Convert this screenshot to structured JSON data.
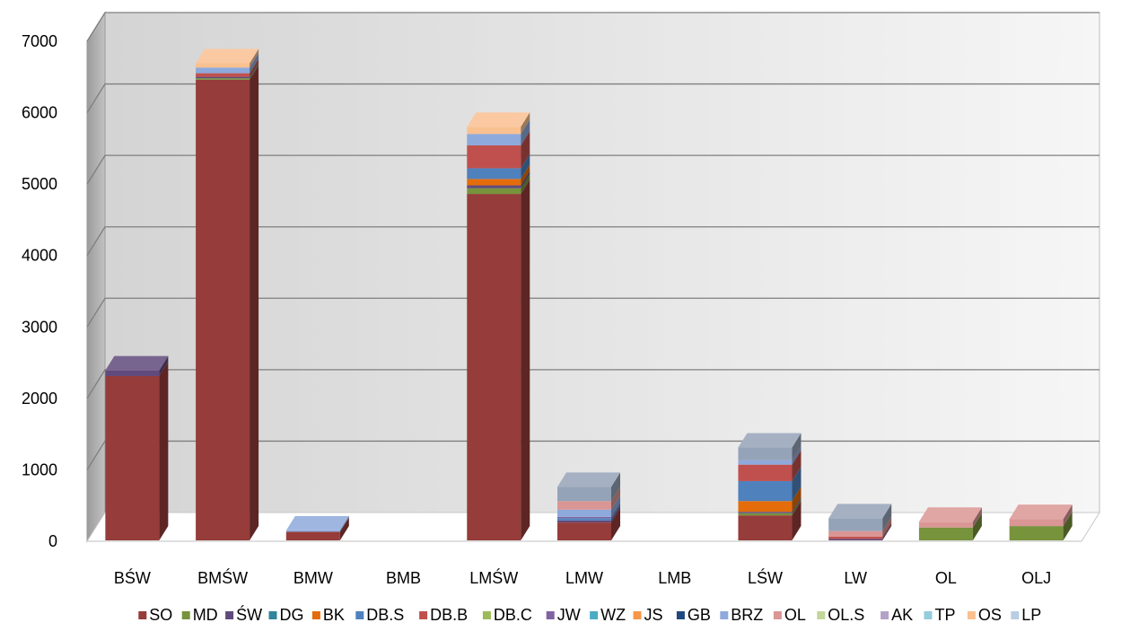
{
  "chart_data": {
    "type": "bar",
    "stacked": true,
    "three_d": true,
    "categories": [
      "BŚW",
      "BMŚW",
      "BMW",
      "BMB",
      "LMŚW",
      "LMW",
      "LMB",
      "LŚW",
      "LW",
      "OL",
      "OLJ"
    ],
    "ylim": [
      0,
      7000
    ],
    "yticks": [
      0,
      1000,
      2000,
      3000,
      4000,
      5000,
      6000,
      7000
    ],
    "grid": true,
    "legend_position": "bottom",
    "series": [
      {
        "name": "SO",
        "color": "#963C3A",
        "values": [
          2300,
          6450,
          120,
          0,
          4850,
          250,
          0,
          350,
          0,
          0,
          0
        ]
      },
      {
        "name": "MD",
        "color": "#77933C",
        "values": [
          0,
          20,
          0,
          0,
          80,
          0,
          0,
          30,
          0,
          180,
          200
        ]
      },
      {
        "name": "ŚW",
        "color": "#604A7B",
        "values": [
          80,
          20,
          0,
          0,
          40,
          30,
          0,
          20,
          20,
          0,
          0
        ]
      },
      {
        "name": "DG",
        "color": "#31859C",
        "values": [
          0,
          0,
          0,
          0,
          0,
          0,
          0,
          0,
          0,
          0,
          0
        ]
      },
      {
        "name": "BK",
        "color": "#E46C0A",
        "values": [
          0,
          0,
          0,
          0,
          90,
          0,
          0,
          150,
          0,
          0,
          0
        ]
      },
      {
        "name": "DB.S",
        "color": "#4F81BD",
        "values": [
          0,
          0,
          0,
          0,
          150,
          30,
          0,
          280,
          0,
          0,
          0
        ]
      },
      {
        "name": "DB.B",
        "color": "#C0504D",
        "values": [
          0,
          50,
          0,
          0,
          320,
          0,
          0,
          230,
          30,
          0,
          0
        ]
      },
      {
        "name": "DB.C",
        "color": "#9BBB59",
        "values": [
          0,
          0,
          0,
          0,
          0,
          0,
          0,
          0,
          0,
          0,
          0
        ]
      },
      {
        "name": "JW",
        "color": "#8064A2",
        "values": [
          0,
          0,
          0,
          0,
          0,
          20,
          0,
          0,
          0,
          0,
          0
        ]
      },
      {
        "name": "WZ",
        "color": "#4BACC6",
        "values": [
          0,
          0,
          0,
          0,
          0,
          0,
          0,
          0,
          0,
          0,
          0
        ]
      },
      {
        "name": "JS",
        "color": "#F79646",
        "values": [
          0,
          0,
          0,
          0,
          0,
          0,
          0,
          0,
          0,
          0,
          0
        ]
      },
      {
        "name": "GB",
        "color": "#1F497D",
        "values": [
          0,
          0,
          0,
          0,
          0,
          0,
          0,
          0,
          0,
          0,
          0
        ]
      },
      {
        "name": "BRZ",
        "color": "#8EA9DB",
        "values": [
          0,
          80,
          20,
          0,
          160,
          100,
          0,
          60,
          0,
          0,
          0
        ]
      },
      {
        "name": "OL",
        "color": "#D99694",
        "values": [
          0,
          0,
          0,
          0,
          0,
          120,
          0,
          0,
          80,
          80,
          100
        ]
      },
      {
        "name": "OL.S",
        "color": "#C3D69B",
        "values": [
          0,
          0,
          0,
          0,
          0,
          0,
          0,
          0,
          0,
          0,
          0
        ]
      },
      {
        "name": "AK",
        "color": "#B3A2C7",
        "values": [
          0,
          0,
          0,
          0,
          0,
          0,
          0,
          0,
          0,
          0,
          0
        ]
      },
      {
        "name": "TP",
        "color": "#93CDDD",
        "values": [
          0,
          0,
          0,
          0,
          0,
          0,
          0,
          0,
          0,
          0,
          0
        ]
      },
      {
        "name": "OS",
        "color": "#FAC090",
        "values": [
          0,
          60,
          0,
          0,
          100,
          0,
          0,
          0,
          0,
          0,
          0
        ]
      },
      {
        "name": "LP",
        "color": "#B9CDE5",
        "values": [
          0,
          0,
          0,
          0,
          0,
          0,
          0,
          0,
          0,
          0,
          0
        ]
      },
      {
        "name": "",
        "color": "#95A3B8",
        "values": [
          0,
          0,
          0,
          0,
          0,
          200,
          0,
          180,
          180,
          0,
          0
        ]
      }
    ]
  }
}
